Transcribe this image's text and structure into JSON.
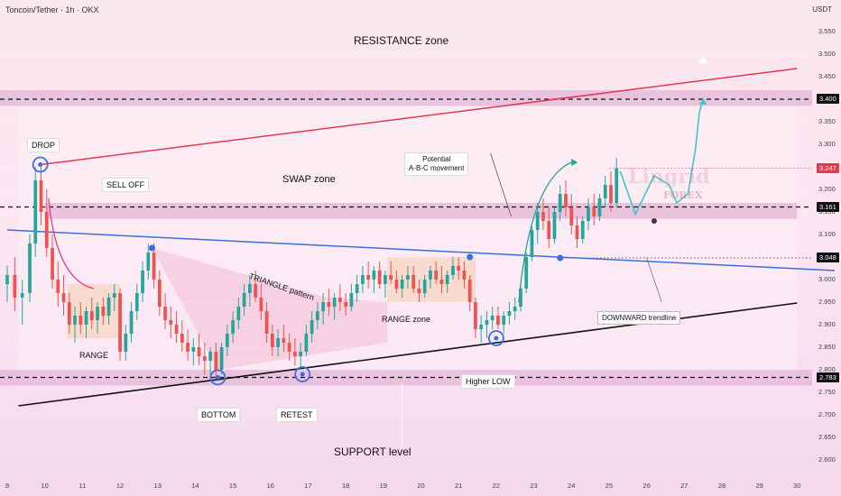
{
  "header": {
    "title": "Toncoin/Tether · 1h · OKX",
    "currency": "USDT"
  },
  "watermark": {
    "brand": "Lingrid",
    "sub": "FOREX"
  },
  "colors": {
    "up": "#26a69a",
    "down": "#ef5350",
    "resistance_line": "#e53950",
    "trendline": "#3b6fe0",
    "support_line": "#111111",
    "projection": "#3cc8c8",
    "zone": "#e3b8d8"
  },
  "annotations": {
    "resistance_zone": "RESISTANCE zone",
    "swap_zone": "SWAP zone",
    "support_level": "SUPPORT level",
    "drop": "DROP",
    "sell_off": "SELL OFF",
    "range": "RANGE",
    "triangle": "TRIANGLE pattern",
    "range_zone": "RANGE zone",
    "potential_line1": "Potential",
    "potential_line2": "A-B-C movement",
    "downward": "DOWNWARD trendline",
    "bottom": "BOTTOM",
    "retest": "RETEST",
    "higher_low": "Higher LOW"
  },
  "chart_data": {
    "type": "candlestick",
    "title": "Toncoin/Tether · 1h · OKX",
    "y_unit": "USDT",
    "ylim": [
      2.56,
      3.62
    ],
    "y_ticks": [
      2.6,
      2.65,
      2.7,
      2.75,
      2.8,
      2.85,
      2.9,
      2.95,
      3.0,
      3.05,
      3.1,
      3.15,
      3.2,
      3.25,
      3.3,
      3.35,
      3.4,
      3.45,
      3.5,
      3.55
    ],
    "x_ticks": [
      "9",
      "10",
      "11",
      "12",
      "13",
      "14",
      "15",
      "16",
      "17",
      "18",
      "19",
      "20",
      "21",
      "22",
      "23",
      "24",
      "25",
      "26",
      "27",
      "28",
      "29",
      "30"
    ],
    "x_range": [
      9,
      30.4
    ],
    "price_tags": [
      "3.400",
      "3.247",
      "3.161",
      "3.048",
      "2.783"
    ],
    "key_levels": {
      "resistance": 3.4,
      "swap": 3.161,
      "support": 2.783,
      "last": 3.247
    },
    "resistance_trendline": [
      [
        9.9,
        3.255
      ],
      [
        30,
        3.468
      ]
    ],
    "downward_trendline": [
      [
        9,
        3.11
      ],
      [
        31,
        3.02
      ]
    ],
    "support_trendline": [
      [
        9.3,
        2.72
      ],
      [
        30,
        2.948
      ]
    ],
    "projection": [
      [
        25.3,
        3.24
      ],
      [
        25.7,
        3.145
      ],
      [
        26.2,
        3.23
      ],
      [
        26.6,
        3.21
      ],
      [
        26.8,
        3.17
      ],
      [
        27.1,
        3.19
      ],
      [
        27.3,
        3.29
      ],
      [
        27.4,
        3.37
      ],
      [
        27.5,
        3.4
      ]
    ],
    "candles": [
      {
        "x": 9.0,
        "o": 2.99,
        "h": 3.03,
        "l": 2.95,
        "c": 3.01
      },
      {
        "x": 9.2,
        "o": 3.01,
        "h": 3.05,
        "l": 2.93,
        "c": 2.96
      },
      {
        "x": 9.4,
        "o": 2.96,
        "h": 3.0,
        "l": 2.9,
        "c": 2.97
      },
      {
        "x": 9.6,
        "o": 2.97,
        "h": 3.1,
        "l": 2.95,
        "c": 3.08
      },
      {
        "x": 9.75,
        "o": 3.08,
        "h": 3.25,
        "l": 3.05,
        "c": 3.22
      },
      {
        "x": 9.9,
        "o": 3.22,
        "h": 3.26,
        "l": 3.12,
        "c": 3.15
      },
      {
        "x": 10.05,
        "o": 3.15,
        "h": 3.2,
        "l": 3.05,
        "c": 3.07
      },
      {
        "x": 10.2,
        "o": 3.07,
        "h": 3.1,
        "l": 2.98,
        "c": 3.0
      },
      {
        "x": 10.35,
        "o": 3.0,
        "h": 3.04,
        "l": 2.94,
        "c": 2.97
      },
      {
        "x": 10.5,
        "o": 2.97,
        "h": 3.01,
        "l": 2.92,
        "c": 2.95
      },
      {
        "x": 10.65,
        "o": 2.95,
        "h": 2.97,
        "l": 2.88,
        "c": 2.9
      },
      {
        "x": 10.8,
        "o": 2.9,
        "h": 2.94,
        "l": 2.86,
        "c": 2.92
      },
      {
        "x": 10.95,
        "o": 2.92,
        "h": 2.95,
        "l": 2.88,
        "c": 2.9
      },
      {
        "x": 11.1,
        "o": 2.9,
        "h": 2.94,
        "l": 2.87,
        "c": 2.93
      },
      {
        "x": 11.25,
        "o": 2.93,
        "h": 2.96,
        "l": 2.89,
        "c": 2.91
      },
      {
        "x": 11.4,
        "o": 2.91,
        "h": 2.95,
        "l": 2.88,
        "c": 2.94
      },
      {
        "x": 11.55,
        "o": 2.94,
        "h": 2.96,
        "l": 2.9,
        "c": 2.92
      },
      {
        "x": 11.7,
        "o": 2.92,
        "h": 2.97,
        "l": 2.9,
        "c": 2.96
      },
      {
        "x": 11.85,
        "o": 2.96,
        "h": 2.99,
        "l": 2.93,
        "c": 2.97
      },
      {
        "x": 12.0,
        "o": 2.97,
        "h": 2.98,
        "l": 2.82,
        "c": 2.84
      },
      {
        "x": 12.15,
        "o": 2.84,
        "h": 2.9,
        "l": 2.82,
        "c": 2.88
      },
      {
        "x": 12.3,
        "o": 2.88,
        "h": 2.95,
        "l": 2.86,
        "c": 2.93
      },
      {
        "x": 12.45,
        "o": 2.93,
        "h": 2.99,
        "l": 2.91,
        "c": 2.97
      },
      {
        "x": 12.6,
        "o": 2.97,
        "h": 3.04,
        "l": 2.95,
        "c": 3.02
      },
      {
        "x": 12.75,
        "o": 3.02,
        "h": 3.08,
        "l": 3.0,
        "c": 3.06
      },
      {
        "x": 12.9,
        "o": 3.06,
        "h": 3.08,
        "l": 2.98,
        "c": 3.0
      },
      {
        "x": 13.05,
        "o": 3.0,
        "h": 3.02,
        "l": 2.92,
        "c": 2.94
      },
      {
        "x": 13.2,
        "o": 2.94,
        "h": 2.97,
        "l": 2.89,
        "c": 2.91
      },
      {
        "x": 13.35,
        "o": 2.91,
        "h": 2.94,
        "l": 2.87,
        "c": 2.9
      },
      {
        "x": 13.5,
        "o": 2.9,
        "h": 2.93,
        "l": 2.86,
        "c": 2.88
      },
      {
        "x": 13.65,
        "o": 2.88,
        "h": 2.91,
        "l": 2.84,
        "c": 2.86
      },
      {
        "x": 13.8,
        "o": 2.86,
        "h": 2.89,
        "l": 2.82,
        "c": 2.84
      },
      {
        "x": 13.95,
        "o": 2.84,
        "h": 2.87,
        "l": 2.81,
        "c": 2.85
      },
      {
        "x": 14.1,
        "o": 2.85,
        "h": 2.88,
        "l": 2.81,
        "c": 2.83
      },
      {
        "x": 14.25,
        "o": 2.83,
        "h": 2.86,
        "l": 2.79,
        "c": 2.82
      },
      {
        "x": 14.4,
        "o": 2.82,
        "h": 2.85,
        "l": 2.79,
        "c": 2.84
      },
      {
        "x": 14.55,
        "o": 2.84,
        "h": 2.86,
        "l": 2.78,
        "c": 2.8
      },
      {
        "x": 14.7,
        "o": 2.8,
        "h": 2.86,
        "l": 2.79,
        "c": 2.85
      },
      {
        "x": 14.85,
        "o": 2.85,
        "h": 2.9,
        "l": 2.83,
        "c": 2.88
      },
      {
        "x": 15.0,
        "o": 2.88,
        "h": 2.93,
        "l": 2.86,
        "c": 2.91
      },
      {
        "x": 15.15,
        "o": 2.91,
        "h": 2.96,
        "l": 2.89,
        "c": 2.94
      },
      {
        "x": 15.3,
        "o": 2.94,
        "h": 2.99,
        "l": 2.92,
        "c": 2.97
      },
      {
        "x": 15.45,
        "o": 2.97,
        "h": 3.01,
        "l": 2.94,
        "c": 2.99
      },
      {
        "x": 15.6,
        "o": 2.99,
        "h": 3.02,
        "l": 2.95,
        "c": 2.96
      },
      {
        "x": 15.75,
        "o": 2.96,
        "h": 2.99,
        "l": 2.91,
        "c": 2.93
      },
      {
        "x": 15.9,
        "o": 2.93,
        "h": 2.95,
        "l": 2.86,
        "c": 2.88
      },
      {
        "x": 16.05,
        "o": 2.88,
        "h": 2.9,
        "l": 2.83,
        "c": 2.85
      },
      {
        "x": 16.2,
        "o": 2.85,
        "h": 2.89,
        "l": 2.83,
        "c": 2.87
      },
      {
        "x": 16.35,
        "o": 2.87,
        "h": 2.9,
        "l": 2.84,
        "c": 2.86
      },
      {
        "x": 16.5,
        "o": 2.86,
        "h": 2.88,
        "l": 2.82,
        "c": 2.84
      },
      {
        "x": 16.65,
        "o": 2.84,
        "h": 2.87,
        "l": 2.81,
        "c": 2.83
      },
      {
        "x": 16.8,
        "o": 2.83,
        "h": 2.86,
        "l": 2.8,
        "c": 2.84
      },
      {
        "x": 16.95,
        "o": 2.84,
        "h": 2.9,
        "l": 2.83,
        "c": 2.88
      },
      {
        "x": 17.1,
        "o": 2.88,
        "h": 2.93,
        "l": 2.86,
        "c": 2.91
      },
      {
        "x": 17.25,
        "o": 2.91,
        "h": 2.95,
        "l": 2.89,
        "c": 2.93
      },
      {
        "x": 17.4,
        "o": 2.93,
        "h": 2.97,
        "l": 2.9,
        "c": 2.95
      },
      {
        "x": 17.55,
        "o": 2.95,
        "h": 2.98,
        "l": 2.92,
        "c": 2.94
      },
      {
        "x": 17.7,
        "o": 2.94,
        "h": 2.97,
        "l": 2.91,
        "c": 2.96
      },
      {
        "x": 17.85,
        "o": 2.96,
        "h": 2.99,
        "l": 2.93,
        "c": 2.95
      },
      {
        "x": 18.0,
        "o": 2.95,
        "h": 2.97,
        "l": 2.92,
        "c": 2.94
      },
      {
        "x": 18.15,
        "o": 2.94,
        "h": 2.99,
        "l": 2.93,
        "c": 2.97
      },
      {
        "x": 18.3,
        "o": 2.97,
        "h": 3.01,
        "l": 2.95,
        "c": 2.99
      },
      {
        "x": 18.45,
        "o": 2.99,
        "h": 3.03,
        "l": 2.97,
        "c": 3.01
      },
      {
        "x": 18.6,
        "o": 3.01,
        "h": 3.04,
        "l": 2.98,
        "c": 3.0
      },
      {
        "x": 18.75,
        "o": 3.0,
        "h": 3.03,
        "l": 2.97,
        "c": 3.02
      },
      {
        "x": 18.9,
        "o": 3.02,
        "h": 3.04,
        "l": 2.98,
        "c": 2.99
      },
      {
        "x": 19.05,
        "o": 2.99,
        "h": 3.02,
        "l": 2.96,
        "c": 3.01
      },
      {
        "x": 19.2,
        "o": 3.01,
        "h": 3.04,
        "l": 2.99,
        "c": 3.0
      },
      {
        "x": 19.35,
        "o": 3.0,
        "h": 3.02,
        "l": 2.97,
        "c": 2.98
      },
      {
        "x": 19.5,
        "o": 2.98,
        "h": 3.01,
        "l": 2.96,
        "c": 3.0
      },
      {
        "x": 19.65,
        "o": 3.0,
        "h": 3.03,
        "l": 2.98,
        "c": 3.01
      },
      {
        "x": 19.8,
        "o": 3.01,
        "h": 3.03,
        "l": 2.97,
        "c": 2.98
      },
      {
        "x": 19.95,
        "o": 2.98,
        "h": 3.0,
        "l": 2.95,
        "c": 2.97
      },
      {
        "x": 20.1,
        "o": 2.97,
        "h": 3.01,
        "l": 2.96,
        "c": 3.0
      },
      {
        "x": 20.25,
        "o": 3.0,
        "h": 3.03,
        "l": 2.98,
        "c": 3.02
      },
      {
        "x": 20.4,
        "o": 3.02,
        "h": 3.04,
        "l": 2.99,
        "c": 3.0
      },
      {
        "x": 20.55,
        "o": 3.0,
        "h": 3.03,
        "l": 2.97,
        "c": 2.99
      },
      {
        "x": 20.7,
        "o": 2.99,
        "h": 3.02,
        "l": 2.97,
        "c": 3.01
      },
      {
        "x": 20.85,
        "o": 3.01,
        "h": 3.05,
        "l": 3.0,
        "c": 3.03
      },
      {
        "x": 21.0,
        "o": 3.03,
        "h": 3.05,
        "l": 3.0,
        "c": 3.02
      },
      {
        "x": 21.15,
        "o": 3.02,
        "h": 3.04,
        "l": 2.98,
        "c": 3.0
      },
      {
        "x": 21.3,
        "o": 3.0,
        "h": 3.01,
        "l": 2.93,
        "c": 2.95
      },
      {
        "x": 21.45,
        "o": 2.95,
        "h": 2.96,
        "l": 2.87,
        "c": 2.89
      },
      {
        "x": 21.6,
        "o": 2.89,
        "h": 2.92,
        "l": 2.86,
        "c": 2.9
      },
      {
        "x": 21.75,
        "o": 2.9,
        "h": 2.93,
        "l": 2.87,
        "c": 2.91
      },
      {
        "x": 21.9,
        "o": 2.91,
        "h": 2.94,
        "l": 2.89,
        "c": 2.92
      },
      {
        "x": 22.05,
        "o": 2.92,
        "h": 2.94,
        "l": 2.89,
        "c": 2.9
      },
      {
        "x": 22.2,
        "o": 2.9,
        "h": 2.93,
        "l": 2.88,
        "c": 2.92
      },
      {
        "x": 22.35,
        "o": 2.92,
        "h": 2.95,
        "l": 2.9,
        "c": 2.93
      },
      {
        "x": 22.5,
        "o": 2.93,
        "h": 2.96,
        "l": 2.91,
        "c": 2.94
      },
      {
        "x": 22.65,
        "o": 2.94,
        "h": 2.99,
        "l": 2.93,
        "c": 2.98
      },
      {
        "x": 22.8,
        "o": 2.98,
        "h": 3.06,
        "l": 2.97,
        "c": 3.05
      },
      {
        "x": 22.95,
        "o": 3.05,
        "h": 3.12,
        "l": 3.04,
        "c": 3.11
      },
      {
        "x": 23.1,
        "o": 3.11,
        "h": 3.17,
        "l": 3.08,
        "c": 3.15
      },
      {
        "x": 23.25,
        "o": 3.15,
        "h": 3.18,
        "l": 3.11,
        "c": 3.13
      },
      {
        "x": 23.4,
        "o": 3.13,
        "h": 3.16,
        "l": 3.07,
        "c": 3.09
      },
      {
        "x": 23.55,
        "o": 3.09,
        "h": 3.16,
        "l": 3.08,
        "c": 3.15
      },
      {
        "x": 23.7,
        "o": 3.15,
        "h": 3.21,
        "l": 3.13,
        "c": 3.19
      },
      {
        "x": 23.85,
        "o": 3.19,
        "h": 3.22,
        "l": 3.14,
        "c": 3.16
      },
      {
        "x": 24.0,
        "o": 3.16,
        "h": 3.19,
        "l": 3.1,
        "c": 3.12
      },
      {
        "x": 24.15,
        "o": 3.12,
        "h": 3.14,
        "l": 3.07,
        "c": 3.09
      },
      {
        "x": 24.3,
        "o": 3.09,
        "h": 3.14,
        "l": 3.08,
        "c": 3.13
      },
      {
        "x": 24.45,
        "o": 3.13,
        "h": 3.18,
        "l": 3.11,
        "c": 3.16
      },
      {
        "x": 24.6,
        "o": 3.16,
        "h": 3.19,
        "l": 3.12,
        "c": 3.14
      },
      {
        "x": 24.75,
        "o": 3.14,
        "h": 3.19,
        "l": 3.13,
        "c": 3.18
      },
      {
        "x": 24.9,
        "o": 3.18,
        "h": 3.23,
        "l": 3.16,
        "c": 3.21
      },
      {
        "x": 25.05,
        "o": 3.21,
        "h": 3.24,
        "l": 3.15,
        "c": 3.17
      },
      {
        "x": 25.2,
        "o": 3.17,
        "h": 3.27,
        "l": 3.16,
        "c": 3.247
      }
    ]
  }
}
